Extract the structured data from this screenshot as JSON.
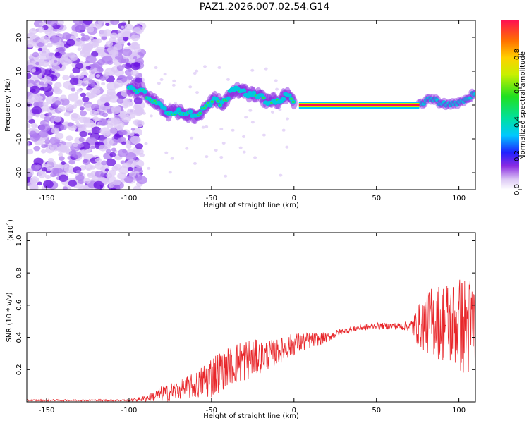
{
  "title": "PAZ1.2026.007.02.54.G14",
  "chart_data": [
    {
      "type": "heatmap",
      "name": "spectrogram",
      "xlabel": "Height of straight line (km)",
      "ylabel": "Frequency (Hz)",
      "xlim": [
        -162,
        110
      ],
      "ylim": [
        -25,
        25
      ],
      "xticks": [
        -150,
        -100,
        -50,
        0,
        50,
        100
      ],
      "yticks": [
        -20,
        -10,
        0,
        10,
        20
      ],
      "colorbar": {
        "label": "Normalized spectral amplitude",
        "range": [
          0,
          1
        ],
        "ticks": [
          0.0,
          0.2,
          0.4,
          0.6,
          0.8
        ]
      },
      "ridge": [
        {
          "x": -100,
          "y": 5
        },
        {
          "x": -92,
          "y": 4
        },
        {
          "x": -85,
          "y": 1
        },
        {
          "x": -76,
          "y": -2
        },
        {
          "x": -68,
          "y": -2
        },
        {
          "x": -60,
          "y": -3
        },
        {
          "x": -54,
          "y": -1
        },
        {
          "x": -48,
          "y": 2
        },
        {
          "x": -44,
          "y": 0
        },
        {
          "x": -38,
          "y": 4
        },
        {
          "x": -34,
          "y": 5
        },
        {
          "x": -28,
          "y": 3
        },
        {
          "x": -22,
          "y": 3
        },
        {
          "x": -16,
          "y": 1
        },
        {
          "x": -10,
          "y": 1
        },
        {
          "x": -4,
          "y": 3
        },
        {
          "x": 0,
          "y": 1
        },
        {
          "x": 4,
          "y": 0
        },
        {
          "x": 76,
          "y": 0
        },
        {
          "x": 82,
          "y": 2
        },
        {
          "x": 88,
          "y": 1
        },
        {
          "x": 95,
          "y": 0
        },
        {
          "x": 102,
          "y": 1
        },
        {
          "x": 108,
          "y": 3
        }
      ]
    },
    {
      "type": "line",
      "name": "snr",
      "xlabel": "Height of straight line (km)",
      "ylabel": "SNR (10 * v/v)",
      "exponent_label": "(x10",
      "exponent_power": "4",
      "exponent_close": ")",
      "xlim": [
        -162,
        110
      ],
      "ylim": [
        0,
        1.05
      ],
      "xticks": [
        -150,
        -100,
        -50,
        0,
        50,
        100
      ],
      "yticks": [
        0.2,
        0.4,
        0.6,
        0.8,
        1.0
      ],
      "color": "#e8262a",
      "series": [
        {
          "name": "SNR envelope",
          "x": [
            -162,
            -100,
            -90,
            -80,
            -60,
            -50,
            -40,
            -30,
            -20,
            -10,
            0,
            10,
            20,
            30,
            40,
            50,
            60,
            70,
            75,
            80,
            90,
            100,
            110
          ],
          "y": [
            0.01,
            0.01,
            0.02,
            0.05,
            0.1,
            0.16,
            0.22,
            0.26,
            0.28,
            0.31,
            0.36,
            0.38,
            0.4,
            0.44,
            0.46,
            0.47,
            0.47,
            0.47,
            0.47,
            0.5,
            0.5,
            0.48,
            0.45
          ],
          "noise": [
            0.005,
            0.005,
            0.02,
            0.05,
            0.08,
            0.14,
            0.12,
            0.14,
            0.1,
            0.08,
            0.07,
            0.05,
            0.03,
            0.02,
            0.02,
            0.02,
            0.02,
            0.03,
            0.12,
            0.2,
            0.25,
            0.3,
            0.35
          ]
        }
      ]
    }
  ]
}
